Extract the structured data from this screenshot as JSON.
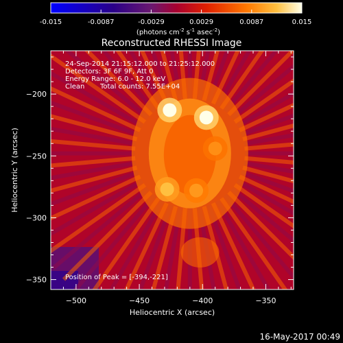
{
  "colorbar": {
    "ticks": [
      "-0.015",
      "-0.0087",
      "-0.0029",
      "0.0029",
      "0.0087",
      "0.015"
    ],
    "unit_main": "(photons cm",
    "unit_sup1": "-2",
    "unit_mid1": " s",
    "unit_sup2": "-1",
    "unit_mid2": " asec",
    "unit_sup3": "-2",
    "unit_end": ")"
  },
  "chart_data": {
    "type": "heatmap",
    "title": "Reconstructed RHESSI Image",
    "xlabel": "Heliocentric X (arcsec)",
    "ylabel": "Heliocentric Y (arcsec)",
    "xlim": [
      -520,
      -328
    ],
    "ylim": [
      -358,
      -165
    ],
    "xticks": [
      -500,
      -450,
      -400,
      -350
    ],
    "yticks": [
      -200,
      -250,
      -300,
      -350
    ],
    "clim": [
      -0.015,
      0.015
    ],
    "colormap": "heat",
    "peak": [
      -394,
      -221
    ],
    "sources": [
      {
        "x": -426,
        "y": -213,
        "intensity": 0.015
      },
      {
        "x": -397,
        "y": -219,
        "intensity": 0.015
      },
      {
        "x": -390,
        "y": -244,
        "intensity": 0.0095
      },
      {
        "x": -428,
        "y": -277,
        "intensity": 0.012
      },
      {
        "x": -405,
        "y": -278,
        "intensity": 0.01
      }
    ],
    "annotations": {
      "time": "24-Sep-2014 21:15:12.000 to 21:25:12.000",
      "detectors": "Detectors: 3F 6F 9F, Att 0",
      "energy": "Energy Range: 6.0 - 12.0 keV",
      "method": "Clean",
      "counts": "Total counts: 7.55E+04",
      "peak_label": "Position of Peak = [-394,-221]"
    }
  },
  "footer": {
    "date": "16-May-2017 00:49"
  }
}
